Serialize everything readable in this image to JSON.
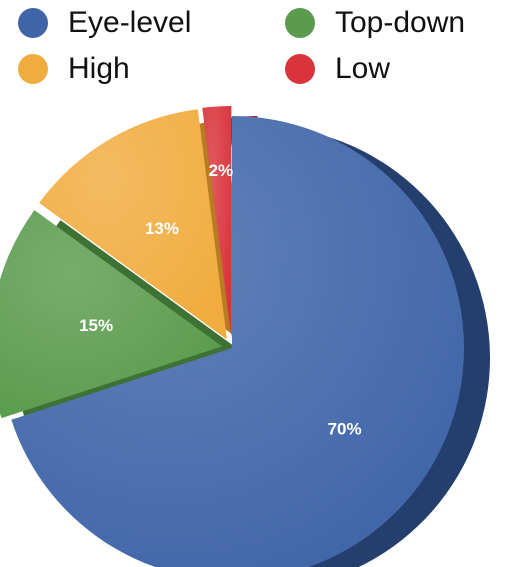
{
  "chart_data": {
    "type": "pie",
    "title": "",
    "categories": [
      "Eye-level",
      "Top-down",
      "High",
      "Low"
    ],
    "values": [
      70,
      15,
      13,
      2
    ],
    "labels": [
      "70%",
      "15%",
      "13%",
      "2%"
    ],
    "colors": [
      "#3f65a8",
      "#5a9b4c",
      "#f1ac3f",
      "#d9333b"
    ],
    "side_colors": [
      "#243f6e",
      "#3e7134",
      "#b87c22",
      "#9b1f27"
    ],
    "exploded": [
      "Top-down",
      "High",
      "Low"
    ],
    "legend_position": "top",
    "style": "3d"
  }
}
